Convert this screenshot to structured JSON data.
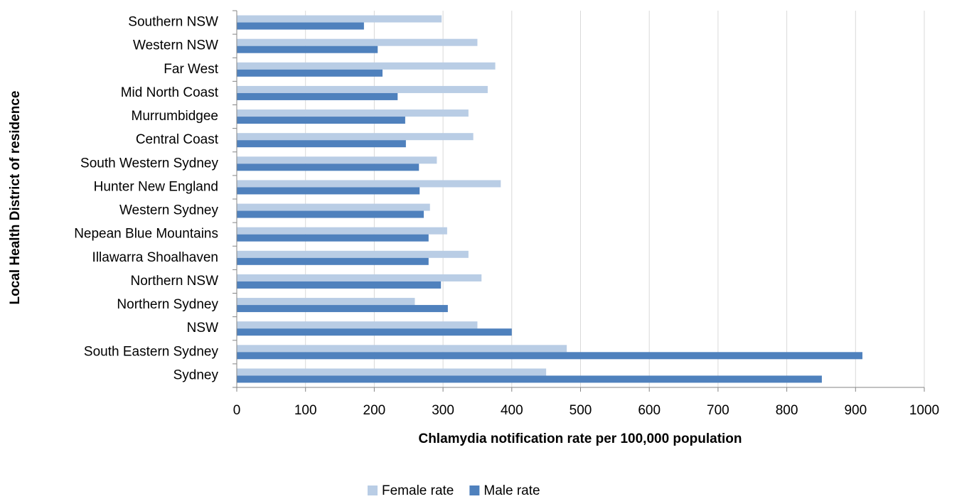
{
  "chart_data": {
    "type": "bar",
    "orientation": "horizontal",
    "xlabel": "Chlamydia notification rate per 100,000 population",
    "ylabel": "Local Health District of residence",
    "categories": [
      "Southern NSW",
      "Western NSW",
      "Far West",
      "Mid North Coast",
      "Murrumbidgee",
      "Central Coast",
      "South Western Sydney",
      "Hunter New England",
      "Western Sydney",
      "Nepean Blue Mountains",
      "Illawarra Shoalhaven",
      "Northern NSW",
      "Northern Sydney",
      "NSW",
      "South Eastern Sydney",
      "Sydney"
    ],
    "series": [
      {
        "name": "Female rate",
        "color": "#b9cde5",
        "values": [
          298,
          350,
          376,
          365,
          337,
          344,
          291,
          384,
          281,
          306,
          337,
          356,
          259,
          350,
          480,
          450
        ]
      },
      {
        "name": "Male rate",
        "color": "#4f81bd",
        "values": [
          185,
          205,
          212,
          234,
          245,
          246,
          265,
          266,
          272,
          279,
          279,
          297,
          307,
          400,
          910,
          851
        ]
      }
    ],
    "xlim": [
      0,
      1000
    ],
    "xticks": [
      0,
      100,
      200,
      300,
      400,
      500,
      600,
      700,
      800,
      900,
      1000
    ],
    "grid": true,
    "legend": "bottom"
  }
}
